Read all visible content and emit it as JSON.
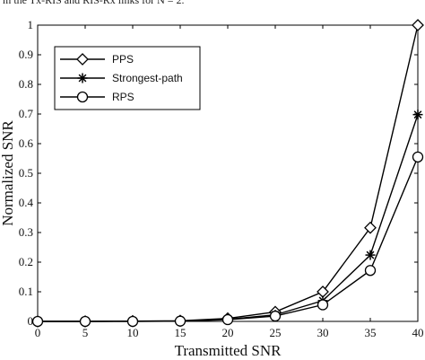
{
  "caption": "m the Tx-RIS and RIS-Rx links for N = 2.",
  "chart_data": {
    "type": "line",
    "title": "",
    "xlabel": "Transmitted SNR",
    "ylabel": "Normalized SNR",
    "xlim": [
      0,
      40
    ],
    "ylim": [
      0,
      1
    ],
    "xticks": [
      0,
      5,
      10,
      15,
      20,
      25,
      30,
      35,
      40
    ],
    "yticks": [
      0,
      0.1,
      0.2,
      0.3,
      0.4,
      0.5,
      0.6,
      0.7,
      0.8,
      0.9,
      1
    ],
    "x": [
      0,
      5,
      10,
      15,
      20,
      25,
      30,
      35,
      40
    ],
    "grid": false,
    "legend_position": "top-left",
    "series": [
      {
        "name": "PPS",
        "marker": "diamond",
        "values": [
          0.0,
          0.0,
          0.001,
          0.002,
          0.01,
          0.032,
          0.1,
          0.316,
          1.0
        ]
      },
      {
        "name": "Strongest-path",
        "marker": "star",
        "values": [
          0.0,
          0.0,
          0.001,
          0.001,
          0.007,
          0.022,
          0.07,
          0.224,
          0.698
        ]
      },
      {
        "name": "RPS",
        "marker": "circle",
        "values": [
          0.0,
          0.0,
          0.0,
          0.001,
          0.006,
          0.018,
          0.056,
          0.172,
          0.555
        ]
      }
    ]
  }
}
